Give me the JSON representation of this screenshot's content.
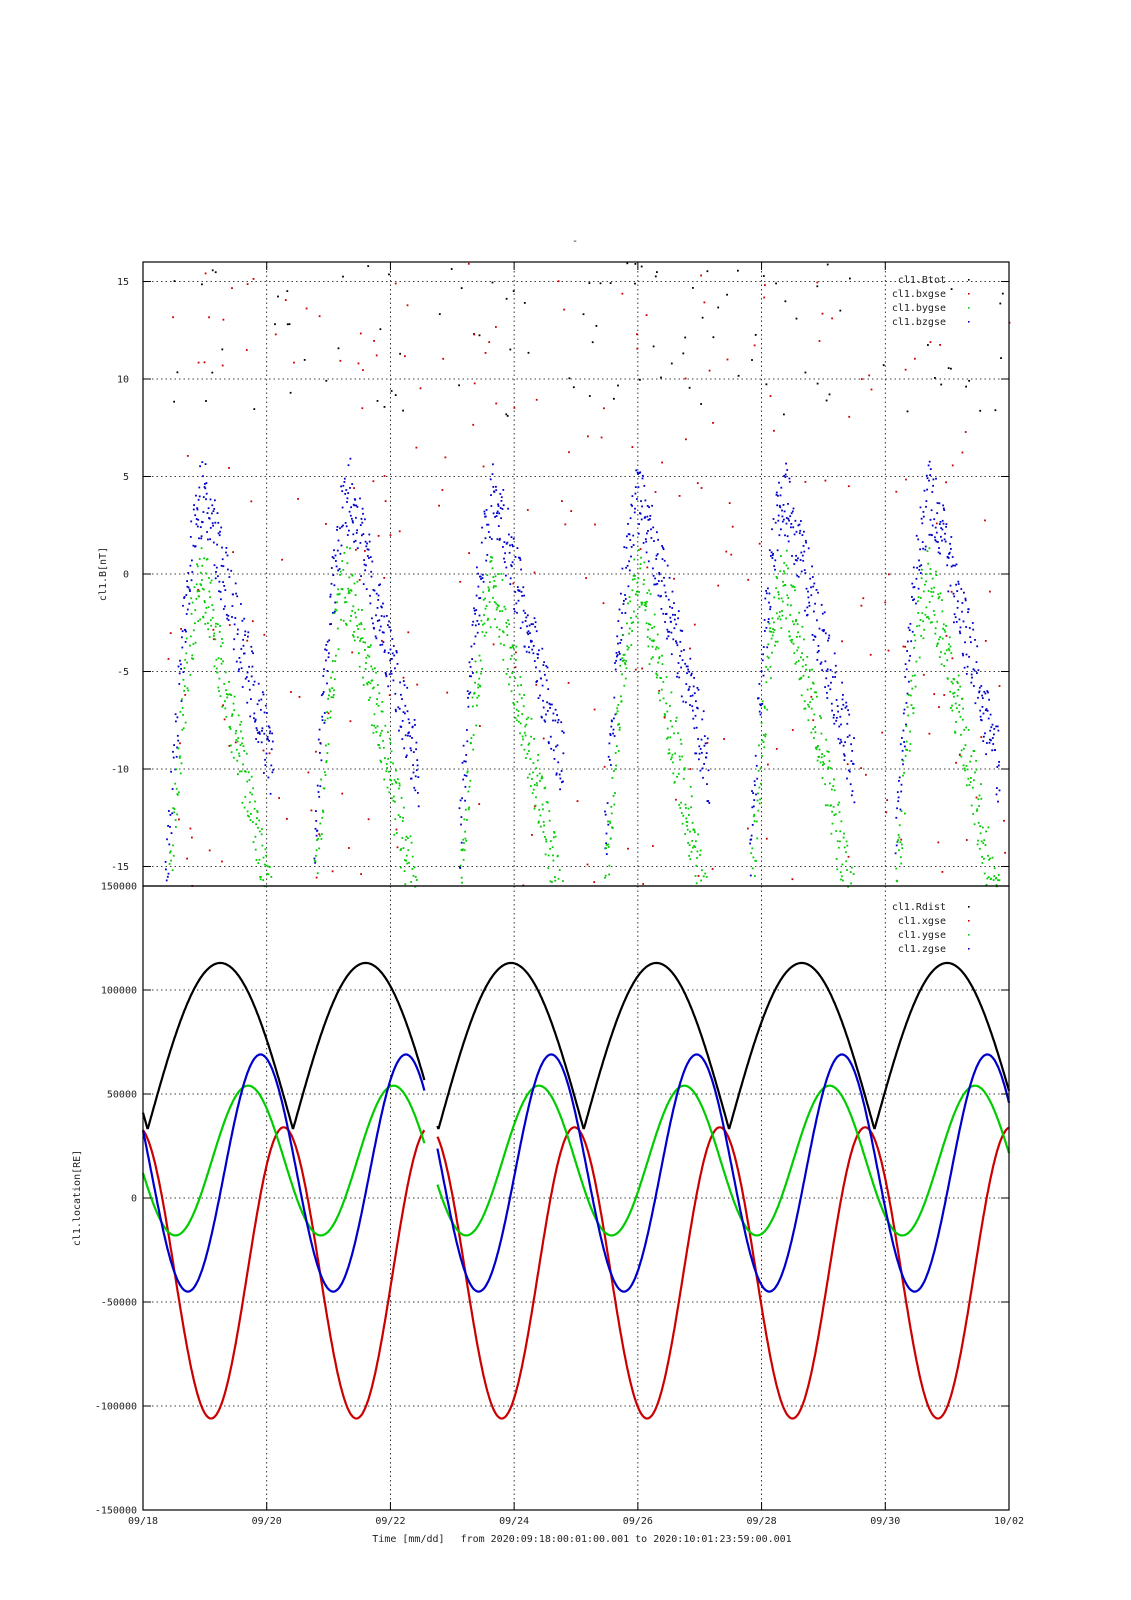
{
  "page_title": "-",
  "footer": {
    "xlabel": "Time [mm/dd]",
    "range_text": "from 2020:09:18:00:01:00.001  to  2020:10:01:23:59:00.001"
  },
  "chart_data": [
    {
      "type": "scatter",
      "ylabel": "cl1.B[nT]",
      "ylim": [
        -16,
        16
      ],
      "yticks": [
        -15,
        -10,
        -5,
        0,
        5,
        10,
        15
      ],
      "xlim": [
        0,
        14
      ],
      "x_unit": "days since 09/18 00:00",
      "grid": true,
      "legend": "top-right",
      "series": [
        {
          "name": "cl1.Btot",
          "color": "#000000"
        },
        {
          "name": "cl1.bxgse",
          "color": "#cc0000"
        },
        {
          "name": "cl1.bygse",
          "color": "#00cc00"
        },
        {
          "name": "cl1.bzgse",
          "color": "#0000cc"
        }
      ]
    },
    {
      "type": "line",
      "ylabel": "cl1.location[RE]",
      "ylim": [
        -150000,
        150000
      ],
      "yticks": [
        -150000,
        -100000,
        -50000,
        0,
        50000,
        100000,
        150000
      ],
      "xlim": [
        0,
        14
      ],
      "grid": true,
      "legend": "top-right",
      "orbit_period_days": 2.35,
      "data_gap_days": [
        4.55,
        4.75
      ],
      "series": [
        {
          "name": "cl1.Rdist",
          "color": "#000000",
          "min": 33000,
          "max": 113000,
          "apogee_day": 1.25
        },
        {
          "name": "cl1.xgse",
          "color": "#cc0000",
          "min": -106000,
          "max": 34000,
          "min_day": 1.1
        },
        {
          "name": "cl1.ygse",
          "color": "#00cc00",
          "min": -18000,
          "max": 54000,
          "max_day": 1.7
        },
        {
          "name": "cl1.zgse",
          "color": "#0000cc",
          "min": -45000,
          "max": 69000,
          "max_day": 1.9
        }
      ]
    }
  ],
  "x_ticks": [
    "09/18",
    "09/20",
    "09/22",
    "09/24",
    "09/26",
    "09/28",
    "09/30",
    "10/02"
  ],
  "x_tick_days": [
    0,
    2,
    4,
    6,
    8,
    10,
    12,
    14
  ]
}
